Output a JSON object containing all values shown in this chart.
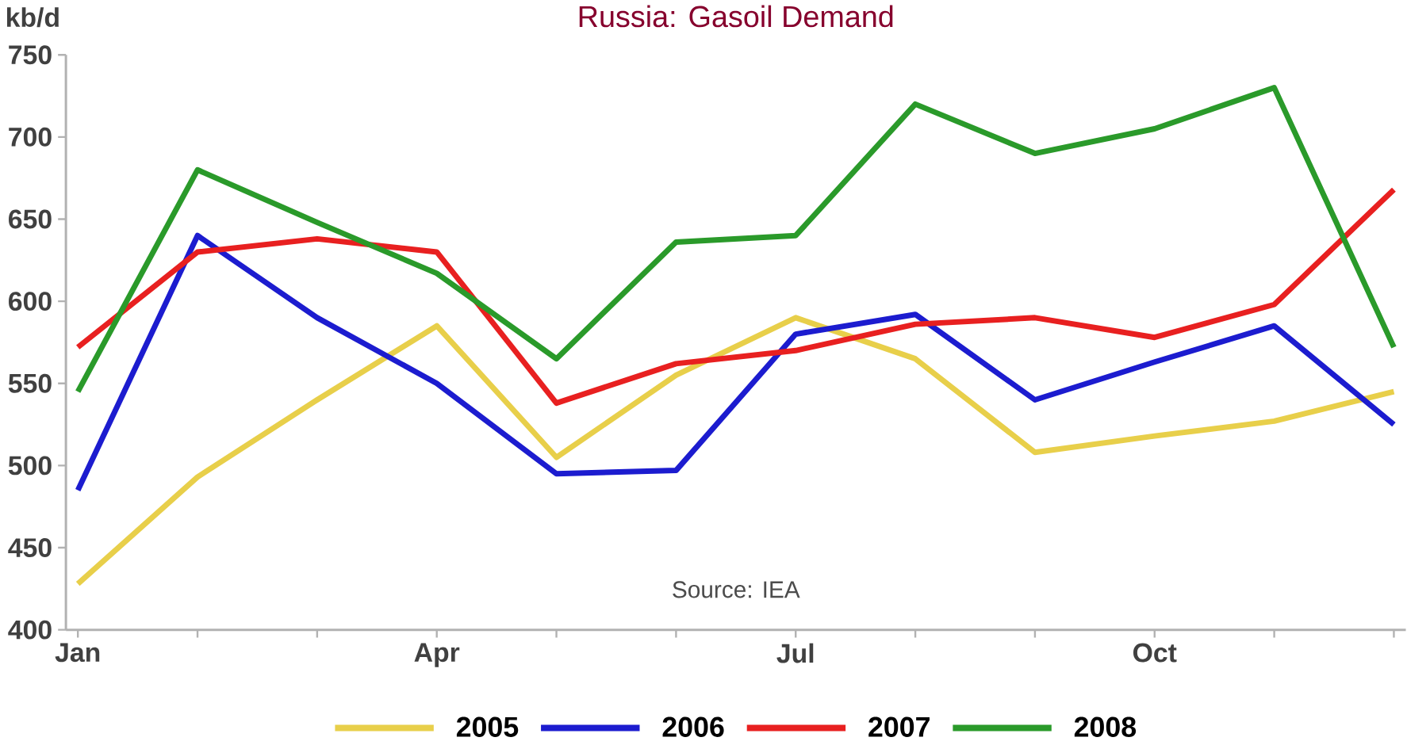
{
  "chart_data": {
    "type": "line",
    "title": "Russia:  Gasoil Demand",
    "ylabel": "kb/d",
    "annotations": [
      "Source: IEA"
    ],
    "categories": [
      "Jan",
      null,
      null,
      "Apr",
      null,
      null,
      "Jul",
      null,
      null,
      "Oct",
      null,
      null
    ],
    "series": [
      {
        "name": "2005",
        "color": "#e8cf4a",
        "values": [
          428,
          493,
          540,
          585,
          505,
          555,
          590,
          565,
          508,
          518,
          527,
          545
        ]
      },
      {
        "name": "2006",
        "color": "#1c1ccf",
        "values": [
          485,
          640,
          590,
          550,
          495,
          497,
          580,
          592,
          540,
          563,
          585,
          525
        ]
      },
      {
        "name": "2007",
        "color": "#e82020",
        "values": [
          572,
          630,
          638,
          630,
          538,
          562,
          570,
          586,
          590,
          578,
          598,
          668
        ]
      },
      {
        "name": "2008",
        "color": "#2a9a2a",
        "values": [
          545,
          680,
          648,
          617,
          565,
          636,
          640,
          720,
          690,
          705,
          730,
          572
        ]
      }
    ],
    "ylim": [
      400,
      750
    ],
    "yticks": [
      400,
      450,
      500,
      550,
      600,
      650,
      700,
      750
    ],
    "grid": false,
    "legend": "bottom",
    "marker": "none",
    "line_style": "solid"
  }
}
